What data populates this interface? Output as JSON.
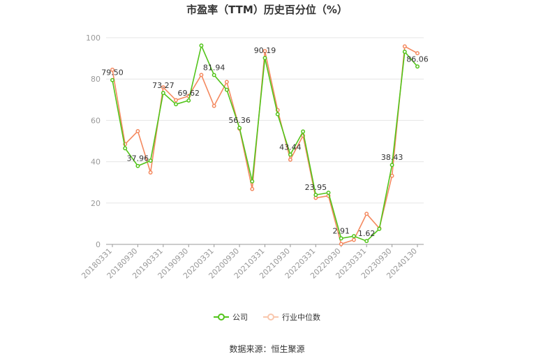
{
  "chart_data": {
    "type": "line",
    "title": "市盈率（TTM）历史百分位（%）",
    "ylim": [
      0,
      100
    ],
    "yticks": [
      0,
      20,
      40,
      60,
      80,
      100
    ],
    "grid": true,
    "legend_position": "bottom-center",
    "x_tick_labels": [
      "20180331",
      "20180930",
      "20190331",
      "20190930",
      "20200331",
      "20200930",
      "20210331",
      "20210930",
      "20220331",
      "20220930",
      "20230331",
      "20230930",
      "20240130"
    ],
    "series": [
      {
        "name": "公司",
        "color": "#52c41a",
        "values": [
          79.5,
          46.5,
          37.96,
          40.5,
          73.27,
          67.8,
          69.62,
          96.2,
          81.94,
          74.8,
          56.36,
          30.5,
          90.19,
          63.0,
          43.44,
          54.6,
          23.95,
          25.0,
          2.91,
          4.0,
          1.62,
          7.5,
          38.43,
          93.2,
          86.06
        ],
        "labels": {
          "0": "79.50",
          "2": "37.96",
          "4": "73.27",
          "6": "69.62",
          "8": "81.94",
          "10": "56.36",
          "12": "90.19",
          "14": "43.44",
          "16": "23.95",
          "18": "2.91",
          "20": "1.62",
          "22": "38.43",
          "24": "86.06"
        }
      },
      {
        "name": "行业中位数",
        "color": "#f4895f",
        "values": [
          84.5,
          48.5,
          54.8,
          34.8,
          76.0,
          69.8,
          71.8,
          82.0,
          67.0,
          78.6,
          56.0,
          26.8,
          93.5,
          65.0,
          41.0,
          52.6,
          22.5,
          23.5,
          0.2,
          2.2,
          14.8,
          7.8,
          33.2,
          95.8,
          92.5
        ]
      }
    ]
  },
  "source": "数据来源：恒生聚源"
}
